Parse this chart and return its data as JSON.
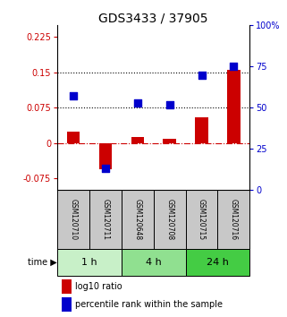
{
  "title": "GDS3433 / 37905",
  "samples": [
    "GSM120710",
    "GSM120711",
    "GSM120648",
    "GSM120708",
    "GSM120715",
    "GSM120716"
  ],
  "time_groups": [
    {
      "label": "1 h",
      "start": 0,
      "end": 2,
      "color": "#c8f0c8"
    },
    {
      "label": "4 h",
      "start": 2,
      "end": 4,
      "color": "#90e090"
    },
    {
      "label": "24 h",
      "start": 4,
      "end": 6,
      "color": "#44cc44"
    }
  ],
  "log10_ratio": [
    0.025,
    -0.055,
    0.012,
    0.01,
    0.055,
    0.155
  ],
  "percentile_rank": [
    57,
    13,
    53,
    52,
    70,
    75
  ],
  "left_ylim": [
    -0.1,
    0.25
  ],
  "right_ylim": [
    0,
    100
  ],
  "left_yticks": [
    -0.075,
    0,
    0.075,
    0.15,
    0.225
  ],
  "right_yticks": [
    0,
    25,
    50,
    75,
    100
  ],
  "left_ytick_labels": [
    "-0.075",
    "0",
    "0.075",
    "0.15",
    "0.225"
  ],
  "right_ytick_labels": [
    "0",
    "25",
    "50",
    "75",
    "100%"
  ],
  "hlines": [
    0.075,
    0.15
  ],
  "bar_color": "#cc0000",
  "dot_color": "#0000cc",
  "zero_line_color": "#cc0000",
  "title_fontsize": 10,
  "tick_fontsize": 7,
  "sample_fontsize": 5.5,
  "time_fontsize": 8,
  "legend_fontsize": 7
}
